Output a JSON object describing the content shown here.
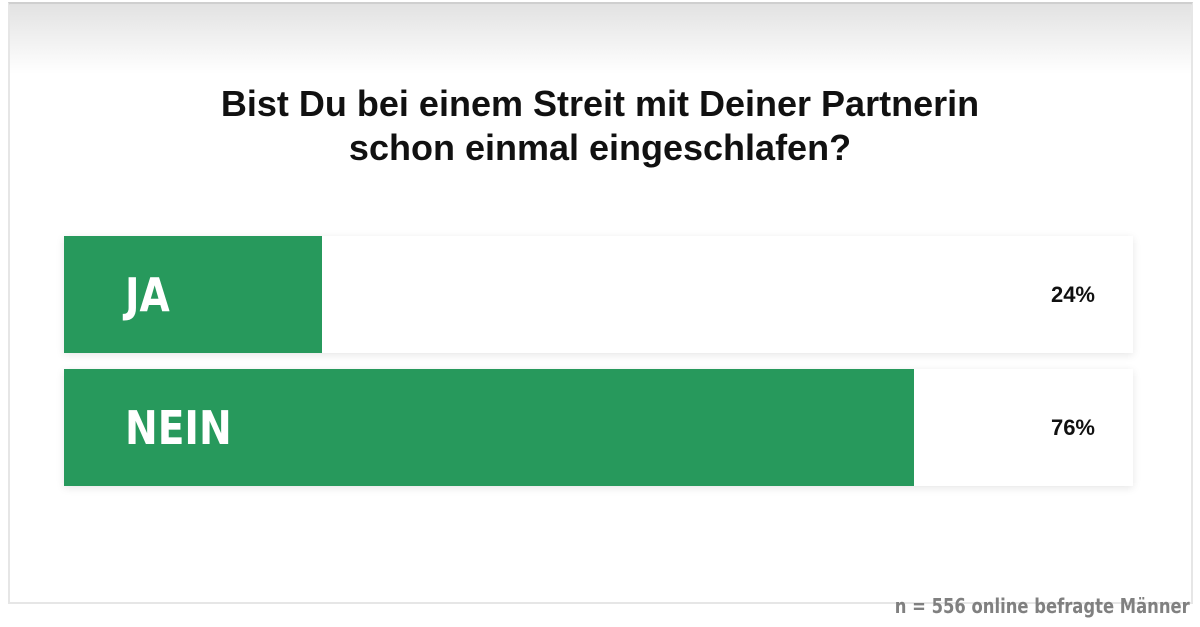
{
  "chart_data": {
    "type": "bar",
    "orientation": "horizontal",
    "title": "Bist Du bei einem Streit mit Deiner Partnerin schon einmal eingeschlafen?",
    "title_lines": [
      "Bist Du bei einem Streit mit Deiner Partnerin",
      "schon einmal eingeschlafen?"
    ],
    "categories": [
      "JA",
      "NEIN"
    ],
    "values": [
      24,
      76
    ],
    "value_labels": [
      "24%",
      "76%"
    ],
    "xlim": [
      0,
      100
    ],
    "bar_color": "#27995c",
    "note": "n = 556 online befragte Männer"
  }
}
